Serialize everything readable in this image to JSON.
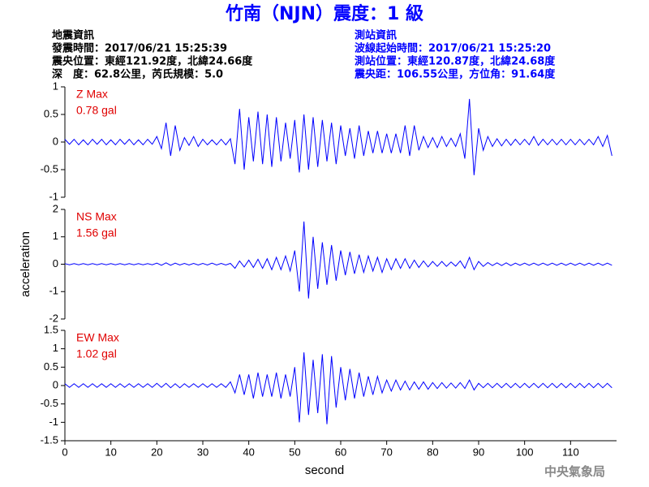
{
  "title": "竹南（NJN）震度：1 級",
  "event_info": [
    "地震資訊",
    "發震時間：2017/06/21 15:25:39",
    "震央位置：東經121.92度，北緯24.66度",
    "深　度：62.8公里，芮氏規模：5.0"
  ],
  "station_info": [
    "測站資訊",
    "波線起始時間：2017/06/21 15:25:20",
    "測站位置：東經120.87度，北緯24.68度",
    "震央距：106.55公里，方位角：91.64度"
  ],
  "credit": "中央氣象局",
  "chart_data": [
    {
      "type": "line",
      "annotation": [
        "Z Max",
        "0.78 gal"
      ],
      "ylim": [
        -1,
        1
      ],
      "yticks": [
        1,
        0.5,
        0,
        -0.5,
        -1
      ],
      "x": [
        0,
        1,
        2,
        3,
        4,
        5,
        6,
        7,
        8,
        9,
        10,
        11,
        12,
        13,
        14,
        15,
        16,
        17,
        18,
        19,
        20,
        21,
        22,
        23,
        24,
        25,
        26,
        27,
        28,
        29,
        30,
        31,
        32,
        33,
        34,
        35,
        36,
        37,
        38,
        39,
        40,
        41,
        42,
        43,
        44,
        45,
        46,
        47,
        48,
        49,
        50,
        51,
        52,
        53,
        54,
        55,
        56,
        57,
        58,
        59,
        60,
        61,
        62,
        63,
        64,
        65,
        66,
        67,
        68,
        69,
        70,
        71,
        72,
        73,
        74,
        75,
        76,
        77,
        78,
        79,
        80,
        81,
        82,
        83,
        84,
        85,
        86,
        87,
        88,
        89,
        90,
        91,
        92,
        93,
        94,
        95,
        96,
        97,
        98,
        99,
        100,
        101,
        102,
        103,
        104,
        105,
        106,
        107,
        108,
        109,
        110,
        111,
        112,
        113,
        114,
        115,
        116,
        117,
        118,
        119
      ],
      "xlim": [
        0,
        120
      ],
      "color": "#0000ff",
      "values": [
        0.05,
        -0.04,
        0.05,
        -0.05,
        0.04,
        -0.05,
        0.05,
        -0.04,
        0.05,
        -0.05,
        0.04,
        -0.05,
        0.05,
        -0.04,
        0.05,
        -0.05,
        0.04,
        -0.05,
        0.05,
        -0.04,
        0.1,
        -0.12,
        0.35,
        -0.25,
        0.3,
        -0.15,
        0.08,
        -0.06,
        0.1,
        -0.08,
        0.05,
        -0.05,
        0.04,
        -0.05,
        0.05,
        -0.05,
        0.06,
        -0.4,
        0.6,
        -0.5,
        0.45,
        -0.35,
        0.55,
        -0.4,
        0.5,
        -0.45,
        0.45,
        -0.35,
        0.35,
        -0.3,
        0.4,
        -0.55,
        0.5,
        -0.5,
        0.45,
        -0.45,
        0.4,
        -0.35,
        0.35,
        -0.4,
        0.3,
        -0.25,
        0.25,
        -0.3,
        0.3,
        -0.25,
        0.2,
        -0.2,
        0.2,
        -0.2,
        0.15,
        -0.2,
        0.15,
        -0.2,
        0.3,
        -0.25,
        0.3,
        -0.15,
        0.1,
        -0.1,
        0.08,
        -0.1,
        0.1,
        -0.08,
        0.07,
        -0.08,
        0.15,
        -0.3,
        0.78,
        -0.6,
        0.25,
        -0.15,
        0.1,
        -0.08,
        0.06,
        -0.07,
        0.05,
        -0.06,
        0.05,
        -0.05,
        0.05,
        -0.05,
        0.1,
        -0.06,
        0.05,
        -0.05,
        0.05,
        -0.05,
        0.05,
        -0.05,
        0.05,
        -0.05,
        0.05,
        -0.05,
        0.05,
        -0.05,
        0.1,
        -0.08,
        0.12,
        -0.25
      ]
    },
    {
      "type": "line",
      "annotation": [
        "NS Max",
        "1.56 gal"
      ],
      "ylim": [
        -2,
        2
      ],
      "yticks": [
        2,
        1,
        0,
        -1,
        -2
      ],
      "x": [
        0,
        1,
        2,
        3,
        4,
        5,
        6,
        7,
        8,
        9,
        10,
        11,
        12,
        13,
        14,
        15,
        16,
        17,
        18,
        19,
        20,
        21,
        22,
        23,
        24,
        25,
        26,
        27,
        28,
        29,
        30,
        31,
        32,
        33,
        34,
        35,
        36,
        37,
        38,
        39,
        40,
        41,
        42,
        43,
        44,
        45,
        46,
        47,
        48,
        49,
        50,
        51,
        52,
        53,
        54,
        55,
        56,
        57,
        58,
        59,
        60,
        61,
        62,
        63,
        64,
        65,
        66,
        67,
        68,
        69,
        70,
        71,
        72,
        73,
        74,
        75,
        76,
        77,
        78,
        79,
        80,
        81,
        82,
        83,
        84,
        85,
        86,
        87,
        88,
        89,
        90,
        91,
        92,
        93,
        94,
        95,
        96,
        97,
        98,
        99,
        100,
        101,
        102,
        103,
        104,
        105,
        106,
        107,
        108,
        109,
        110,
        111,
        112,
        113,
        114,
        115,
        116,
        117,
        118,
        119
      ],
      "xlim": [
        0,
        120
      ],
      "y_label": "acceleration",
      "color": "#0000ff",
      "values": [
        0.02,
        -0.02,
        0.02,
        -0.02,
        0.02,
        -0.02,
        0.02,
        -0.02,
        0.02,
        -0.02,
        0.02,
        -0.02,
        0.02,
        -0.02,
        0.02,
        -0.02,
        0.02,
        -0.02,
        0.02,
        -0.02,
        0.04,
        -0.04,
        0.05,
        -0.04,
        0.04,
        -0.03,
        0.03,
        -0.03,
        0.03,
        -0.03,
        0.03,
        -0.03,
        0.04,
        -0.03,
        0.03,
        -0.03,
        0.03,
        -0.15,
        0.12,
        -0.1,
        0.15,
        -0.12,
        0.18,
        -0.15,
        0.2,
        -0.2,
        0.25,
        -0.2,
        0.3,
        -0.25,
        0.5,
        -1.0,
        1.56,
        -1.25,
        1.0,
        -0.9,
        0.8,
        -0.75,
        0.7,
        -0.6,
        0.5,
        -0.4,
        0.45,
        -0.35,
        0.35,
        -0.3,
        0.3,
        -0.25,
        0.25,
        -0.3,
        0.2,
        -0.2,
        0.2,
        -0.15,
        0.2,
        -0.15,
        0.15,
        -0.12,
        0.12,
        -0.1,
        0.1,
        -0.08,
        0.1,
        -0.08,
        0.08,
        -0.07,
        0.12,
        -0.15,
        0.25,
        -0.2,
        0.1,
        -0.08,
        0.06,
        -0.05,
        0.05,
        -0.05,
        0.05,
        -0.05,
        0.04,
        -0.04,
        0.04,
        -0.04,
        0.04,
        -0.04,
        0.04,
        -0.04,
        0.04,
        -0.04,
        0.04,
        -0.04,
        0.04,
        -0.04,
        0.04,
        -0.04,
        0.04,
        -0.04,
        0.04,
        -0.04,
        0.04,
        -0.04
      ]
    },
    {
      "type": "line",
      "annotation": [
        "EW Max",
        "1.02 gal"
      ],
      "ylim": [
        -1.5,
        1.5
      ],
      "yticks": [
        1.5,
        1,
        0.5,
        0,
        -0.5,
        -1,
        -1.5
      ],
      "x": [
        0,
        1,
        2,
        3,
        4,
        5,
        6,
        7,
        8,
        9,
        10,
        11,
        12,
        13,
        14,
        15,
        16,
        17,
        18,
        19,
        20,
        21,
        22,
        23,
        24,
        25,
        26,
        27,
        28,
        29,
        30,
        31,
        32,
        33,
        34,
        35,
        36,
        37,
        38,
        39,
        40,
        41,
        42,
        43,
        44,
        45,
        46,
        47,
        48,
        49,
        50,
        51,
        52,
        53,
        54,
        55,
        56,
        57,
        58,
        59,
        60,
        61,
        62,
        63,
        64,
        65,
        66,
        67,
        68,
        69,
        70,
        71,
        72,
        73,
        74,
        75,
        76,
        77,
        78,
        79,
        80,
        81,
        82,
        83,
        84,
        85,
        86,
        87,
        88,
        89,
        90,
        91,
        92,
        93,
        94,
        95,
        96,
        97,
        98,
        99,
        100,
        101,
        102,
        103,
        104,
        105,
        106,
        107,
        108,
        109,
        110,
        111,
        112,
        113,
        114,
        115,
        116,
        117,
        118,
        119
      ],
      "xlim": [
        0,
        120
      ],
      "xticks": [
        0,
        10,
        20,
        30,
        40,
        50,
        60,
        70,
        80,
        90,
        100,
        110
      ],
      "x_label": "second",
      "color": "#0000ff",
      "values": [
        0.05,
        -0.05,
        0.05,
        -0.05,
        0.05,
        -0.05,
        0.05,
        -0.05,
        0.05,
        -0.05,
        0.05,
        -0.05,
        0.05,
        -0.05,
        0.05,
        -0.05,
        0.05,
        -0.05,
        0.05,
        -0.05,
        0.06,
        -0.05,
        0.06,
        -0.06,
        0.05,
        -0.06,
        0.05,
        -0.05,
        0.05,
        -0.05,
        0.05,
        -0.05,
        0.05,
        -0.05,
        0.05,
        -0.05,
        0.1,
        -0.2,
        0.3,
        -0.25,
        0.3,
        -0.35,
        0.35,
        -0.3,
        0.3,
        -0.3,
        0.35,
        -0.35,
        0.3,
        -0.3,
        0.5,
        -1.0,
        0.9,
        -0.8,
        0.7,
        -0.75,
        0.85,
        -1.05,
        0.8,
        -0.6,
        0.5,
        -0.4,
        0.45,
        -0.35,
        0.35,
        -0.3,
        0.25,
        -0.25,
        0.25,
        -0.2,
        0.15,
        -0.15,
        0.15,
        -0.12,
        0.12,
        -0.12,
        0.1,
        -0.1,
        0.1,
        -0.1,
        0.08,
        -0.08,
        0.08,
        -0.07,
        0.07,
        -0.07,
        0.08,
        -0.08,
        0.15,
        -0.12,
        0.06,
        -0.06,
        0.06,
        -0.06,
        0.06,
        -0.06,
        0.06,
        -0.06,
        0.06,
        -0.06,
        0.06,
        -0.06,
        0.06,
        -0.06,
        0.06,
        -0.06,
        0.06,
        -0.06,
        0.06,
        -0.06,
        0.06,
        -0.06,
        0.06,
        -0.06,
        0.06,
        -0.06,
        0.06,
        -0.06,
        0.06,
        -0.06
      ]
    }
  ]
}
